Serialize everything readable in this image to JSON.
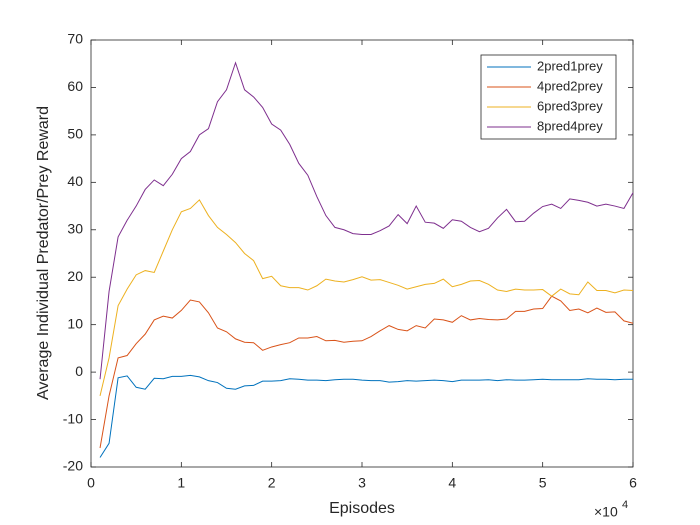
{
  "chart_data": {
    "type": "line",
    "xlabel": "Episodes",
    "ylabel": "Average Individual Predator/Prey Reward",
    "x_exponent_base": "×10",
    "x_exponent_power": "4",
    "x": [
      0.1,
      0.2,
      0.3,
      0.4,
      0.5,
      0.6,
      0.7,
      0.8,
      0.9,
      1.0,
      1.1,
      1.2,
      1.3,
      1.4,
      1.5,
      1.6,
      1.7,
      1.8,
      1.9,
      2.0,
      2.1,
      2.2,
      2.3,
      2.4,
      2.5,
      2.6,
      2.7,
      2.8,
      2.9,
      3.0,
      3.1,
      3.2,
      3.3,
      3.4,
      3.5,
      3.6,
      3.7,
      3.8,
      3.9,
      4.0,
      4.1,
      4.2,
      4.3,
      4.4,
      4.5,
      4.6,
      4.7,
      4.8,
      4.9,
      5.0,
      5.1,
      5.2,
      5.3,
      5.4,
      5.5,
      5.6,
      5.7,
      5.8,
      5.9,
      6.0
    ],
    "series": [
      {
        "name": "2pred1prey",
        "color": "#0072BD",
        "values": [
          -18,
          -15,
          -1.2,
          -0.8,
          -3.2,
          -3.6,
          -1.3,
          -1.4,
          -0.9,
          -0.9,
          -0.7,
          -1,
          -1.8,
          -2.2,
          -3.4,
          -3.6,
          -2.9,
          -2.8,
          -1.9,
          -1.9,
          -1.8,
          -1.4,
          -1.5,
          -1.7,
          -1.7,
          -1.8,
          -1.6,
          -1.5,
          -1.5,
          -1.7,
          -1.8,
          -1.8,
          -2.1,
          -2,
          -1.8,
          -1.9,
          -1.8,
          -1.7,
          -1.8,
          -2,
          -1.7,
          -1.7,
          -1.7,
          -1.6,
          -1.8,
          -1.6,
          -1.7,
          -1.7,
          -1.6,
          -1.5,
          -1.6,
          -1.6,
          -1.6,
          -1.6,
          -1.4,
          -1.5,
          -1.5,
          -1.6,
          -1.5,
          -1.5
        ]
      },
      {
        "name": "4pred2prey",
        "color": "#D95319",
        "values": [
          -16,
          -5,
          3,
          3.5,
          6,
          8,
          11,
          11.8,
          11.4,
          13,
          15.2,
          14.8,
          12.5,
          9.3,
          8.5,
          7,
          6.3,
          6.2,
          4.6,
          5.3,
          5.8,
          6.2,
          7.2,
          7.2,
          7.5,
          6.6,
          6.7,
          6.3,
          6.5,
          6.6,
          7.5,
          8.7,
          9.8,
          9,
          8.7,
          9.8,
          9.3,
          11.2,
          11,
          10.5,
          11.9,
          11,
          11.3,
          11.1,
          11,
          11.2,
          12.8,
          12.8,
          13.3,
          13.4,
          16,
          15,
          13,
          13.3,
          12.5,
          13.5,
          12.6,
          12.7,
          10.8,
          10.3
        ]
      },
      {
        "name": "6pred3prey",
        "color": "#EDB120",
        "values": [
          -5,
          3,
          14,
          17.5,
          20.5,
          21.4,
          21,
          25.5,
          30,
          33.8,
          34.5,
          36.3,
          33,
          30.5,
          29,
          27.3,
          25,
          23.5,
          19.7,
          20.2,
          18.2,
          17.8,
          17.8,
          17.3,
          18.2,
          19.6,
          19.2,
          19,
          19.5,
          20.1,
          19.4,
          19.5,
          18.9,
          18.3,
          17.5,
          18,
          18.5,
          18.7,
          19.6,
          18,
          18.5,
          19.2,
          19.3,
          18.5,
          17.3,
          17,
          17.5,
          17.3,
          17.3,
          17.4,
          16,
          17.5,
          16.5,
          16.3,
          19,
          17.2,
          17.2,
          16.7,
          17.3,
          17.2
        ]
      },
      {
        "name": "8pred4prey",
        "color": "#7E2F8E",
        "values": [
          -1.5,
          17,
          28.5,
          32,
          35,
          38.5,
          40.5,
          39.3,
          41.7,
          45,
          46.5,
          50,
          51.3,
          57,
          59.5,
          65.2,
          59.5,
          58,
          55.8,
          52.3,
          51,
          48,
          44,
          41.5,
          37,
          33,
          30.5,
          30,
          29.2,
          29,
          29,
          29.8,
          30.8,
          33.2,
          31.3,
          35,
          31.6,
          31.4,
          30.3,
          32.1,
          31.8,
          30.5,
          29.6,
          30.3,
          32.5,
          34.3,
          31.7,
          31.8,
          33.5,
          34.9,
          35.4,
          34.5,
          36.5,
          36.2,
          35.8,
          35,
          35.4,
          35,
          34.5,
          37.8
        ]
      }
    ],
    "xlim": [
      0,
      6
    ],
    "xticks": [
      0,
      1,
      2,
      3,
      4,
      5,
      6
    ],
    "ylim": [
      -20,
      70
    ],
    "yticks": [
      -20,
      -10,
      0,
      10,
      20,
      30,
      40,
      50,
      60,
      70
    ],
    "grid": false,
    "legend": "top-right"
  }
}
